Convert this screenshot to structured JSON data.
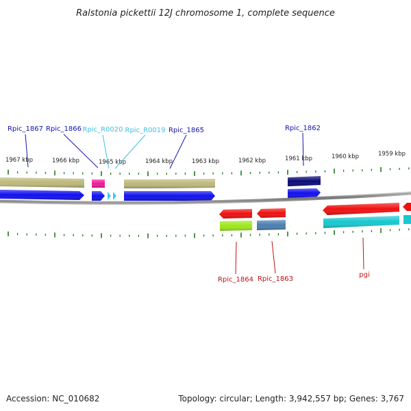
{
  "title": "Ralstonia pickettii 12J chromosome 1, complete sequence",
  "footer": {
    "accession": "Accession: NC_010682",
    "summary": "Topology: circular; Length: 3,942,557 bp; Genes: 3,767"
  },
  "colors": {
    "protein_label": "#1010b0",
    "rna_label": "#40c0e0",
    "reverse_label": "#c01010",
    "tick": "#1a7a1a",
    "backbone": "#8a8a8a",
    "gene_blue": "#1010f0",
    "gene_khaki": "#bdb87a",
    "gene_magenta": "#f0189a",
    "gene_navy": "#0a0a78",
    "gene_red": "#f01010",
    "gene_lime": "#9ee81a",
    "gene_steel": "#4a7fb0",
    "gene_cyan": "#18c8d0",
    "rna_arrow": "#40c8f0"
  },
  "kbp_labels": [
    "1967 kbp",
    "1966 kbp",
    "1965 kbp",
    "1964 kbp",
    "1963 kbp",
    "1962 kbp",
    "1961 kbp",
    "1960 kbp",
    "1959 kbp"
  ],
  "gene_labels_top": [
    {
      "text": "Rpic_1867",
      "kind": "protein"
    },
    {
      "text": "Rpic_1866",
      "kind": "protein"
    },
    {
      "text": "Rpic_R0020",
      "kind": "rna"
    },
    {
      "text": "Rpic_R0019",
      "kind": "rna"
    },
    {
      "text": "Rpic_1865",
      "kind": "protein"
    },
    {
      "text": "Rpic_1862",
      "kind": "protein"
    }
  ],
  "gene_labels_bottom": [
    {
      "text": "Rpic_1864",
      "kind": "reverse"
    },
    {
      "text": "Rpic_1863",
      "kind": "reverse"
    },
    {
      "text": "pgi",
      "kind": "reverse"
    }
  ]
}
